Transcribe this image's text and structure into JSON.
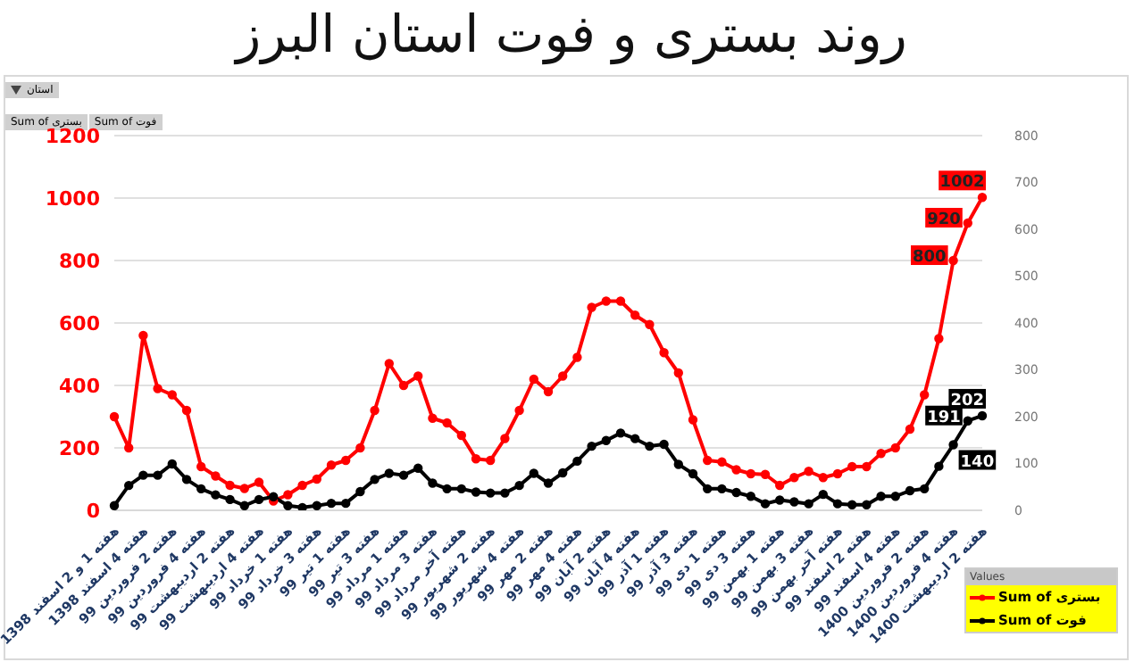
{
  "chart_data": {
    "type": "line",
    "title": "روند بستری و فوت استان البرز",
    "categories": [
      "هفته 1 و 2 اسفند 1398",
      null,
      "هفته 4 اسفند 1398",
      null,
      "هفته 2 فروردین 99",
      null,
      "هفته 4 فروردین 99",
      null,
      "هفته 2 اردیبهشت 99",
      null,
      "هفته 4 اردیبهشت 99",
      null,
      "هفته 1 خرداد 99",
      null,
      "هفته 3 خرداد 99",
      null,
      "هفته 1 تیر 99",
      null,
      "هفته 3 تیر 99",
      null,
      "هفته 1 مرداد 99",
      null,
      "هفته 3 مرداد 99",
      null,
      "هفته آخر مرداد 99",
      null,
      "هفته 2 شهریور 99",
      null,
      "هفته 4 شهریور 99",
      null,
      "هفته 2 مهر 99",
      null,
      "هفته 4 مهر 99",
      null,
      "هفته 2 آبان 99",
      null,
      "هفته 4 آبان 99",
      null,
      "هفته 1 آذر 99",
      null,
      "هفته 3 آذر 99",
      null,
      "هفته 1 دی 99",
      null,
      "هفته 3 دی 99",
      null,
      "هفته 1 بهمن 99",
      null,
      "هفته 3 بهمن 99",
      null,
      "هفته آخر بهمن 99",
      null,
      "هفته 2 اسفند 99",
      null,
      "هفته 4 اسفند 99",
      null,
      "هفته 2 فروردین 1400",
      null,
      "هفته 4 فروردین 1400",
      null,
      "هفته 2 اردیبهشت 1400"
    ],
    "series": [
      {
        "name": "Sum of بستری",
        "color": "#ff0000",
        "values": [
          300,
          200,
          560,
          390,
          370,
          320,
          140,
          110,
          80,
          70,
          90,
          30,
          50,
          80,
          100,
          145,
          160,
          200,
          320,
          470,
          400,
          430,
          295,
          280,
          240,
          165,
          160,
          230,
          320,
          420,
          380,
          430,
          490,
          650,
          670,
          670,
          625,
          595,
          505,
          440,
          290,
          160,
          155,
          130,
          117,
          115,
          80,
          105,
          125,
          105,
          117,
          140,
          140,
          182,
          200,
          260,
          370,
          550,
          800,
          920,
          1002
        ],
        "value_labels": [
          null,
          null,
          null,
          null,
          null,
          null,
          null,
          null,
          null,
          null,
          null,
          null,
          null,
          null,
          null,
          null,
          null,
          null,
          null,
          null,
          null,
          null,
          null,
          null,
          null,
          null,
          null,
          null,
          null,
          null,
          null,
          null,
          null,
          null,
          null,
          null,
          null,
          null,
          null,
          null,
          null,
          null,
          null,
          null,
          null,
          null,
          null,
          null,
          null,
          null,
          null,
          null,
          null,
          null,
          null,
          null,
          null,
          null,
          "800",
          "920",
          "1002"
        ]
      },
      {
        "name": "Sum of فوت",
        "color": "#000000",
        "axis": "y2",
        "values": [
          10,
          53,
          75,
          75,
          99,
          66,
          46,
          33,
          23,
          10,
          23,
          29,
          10,
          6,
          10,
          15,
          15,
          40,
          66,
          79,
          75,
          90,
          58,
          46,
          46,
          39,
          37,
          37,
          53,
          79,
          58,
          80,
          105,
          137,
          149,
          165,
          153,
          137,
          141,
          98,
          78,
          46,
          46,
          38,
          30,
          14,
          22,
          18,
          14,
          34,
          14,
          12,
          12,
          30,
          30,
          42,
          46,
          94,
          140,
          191,
          202
        ],
        "value_labels": [
          null,
          null,
          null,
          null,
          null,
          null,
          null,
          null,
          null,
          null,
          null,
          null,
          null,
          null,
          null,
          null,
          null,
          null,
          null,
          null,
          null,
          null,
          null,
          null,
          null,
          null,
          null,
          null,
          null,
          null,
          null,
          null,
          null,
          null,
          null,
          null,
          null,
          null,
          null,
          null,
          null,
          null,
          null,
          null,
          null,
          null,
          null,
          null,
          null,
          null,
          null,
          null,
          null,
          null,
          null,
          null,
          null,
          null,
          "140",
          "191",
          "202"
        ]
      }
    ],
    "ylim": [
      0,
      1200
    ],
    "yticks": [
      0,
      200,
      400,
      600,
      800,
      1000,
      1200
    ],
    "y2lim": [
      0,
      800
    ],
    "y2ticks": [
      0,
      100,
      200,
      300,
      400,
      500,
      600,
      700,
      800
    ],
    "grid": "y",
    "legend": "bottom right",
    "legend_title": "Values",
    "marker": "circle",
    "line_style": "solid",
    "annotations": [
      "استان",
      "Sum of بستری",
      "Sum of فوت"
    ]
  }
}
